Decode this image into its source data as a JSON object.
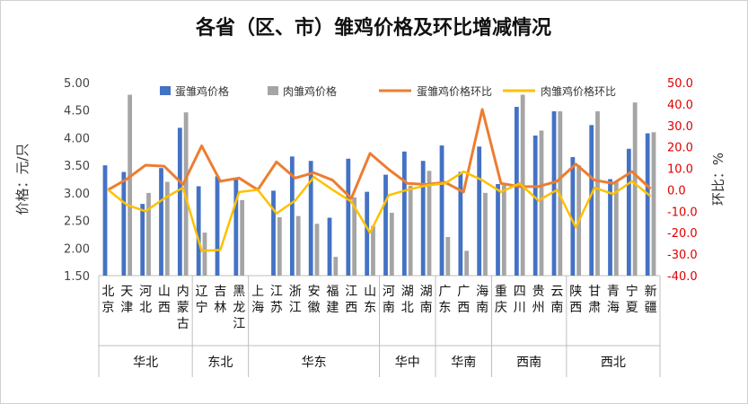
{
  "chart_data": {
    "type": "bar",
    "title": "各省（区、市）雏鸡价格及环比增减情况",
    "ylabel": "价格：元/只",
    "y2label": "环比：%",
    "ylim": [
      1.5,
      5.0
    ],
    "y_ticks": [
      "1.50",
      "2.00",
      "2.50",
      "3.00",
      "3.50",
      "4.00",
      "4.50",
      "5.00"
    ],
    "y2lim": [
      -40,
      50
    ],
    "y2_ticks": [
      "-40.0",
      "-30.0",
      "-20.0",
      "-10.0",
      "0.0",
      "10.0",
      "20.0",
      "30.0",
      "40.0",
      "50.0"
    ],
    "categories": [
      "北京",
      "天津",
      "河北",
      "山西",
      "内蒙古",
      "辽宁",
      "吉林",
      "黑龙江",
      "上海",
      "江苏",
      "浙江",
      "安徽",
      "福建",
      "江西",
      "山东",
      "河南",
      "湖北",
      "湖南",
      "广东",
      "广西",
      "海南",
      "重庆",
      "四川",
      "贵州",
      "云南",
      "陕西",
      "甘肃",
      "青海",
      "宁夏",
      "新疆"
    ],
    "regions": [
      {
        "name": "华北",
        "count": 5
      },
      {
        "name": "东北",
        "count": 3
      },
      {
        "name": "华东",
        "count": 7
      },
      {
        "name": "华中",
        "count": 3
      },
      {
        "name": "华南",
        "count": 3
      },
      {
        "name": "西南",
        "count": 4
      },
      {
        "name": "西北",
        "count": 5
      }
    ],
    "series": [
      {
        "name": "蛋雏鸡价格",
        "kind": "bar",
        "axis": "left",
        "color": "#4472C4",
        "values": [
          3.5,
          3.38,
          2.8,
          3.45,
          4.18,
          3.12,
          3.3,
          3.25,
          null,
          3.04,
          3.66,
          3.58,
          2.55,
          3.62,
          3.02,
          3.33,
          3.75,
          3.58,
          3.86,
          3.38,
          3.84,
          3.16,
          4.56,
          4.04,
          4.48,
          3.65,
          4.23,
          3.25,
          3.8,
          4.08
        ]
      },
      {
        "name": "肉雏鸡价格",
        "kind": "bar",
        "axis": "left",
        "color": "#A5A5A5",
        "values": [
          null,
          4.78,
          3.0,
          3.2,
          4.46,
          2.28,
          null,
          2.87,
          null,
          2.56,
          2.58,
          2.44,
          1.84,
          2.92,
          2.4,
          2.64,
          3.13,
          3.4,
          2.2,
          1.95,
          3.0,
          3.14,
          4.78,
          4.13,
          4.48,
          3.5,
          4.48,
          3.2,
          4.64,
          4.1
        ]
      },
      {
        "name": "蛋雏鸡价格环比",
        "kind": "line",
        "axis": "right",
        "color": "#ED7D31",
        "values": [
          0.0,
          5.0,
          11.5,
          11.0,
          2.5,
          20.5,
          4.0,
          5.5,
          0.0,
          13.0,
          5.5,
          8.0,
          4.5,
          -4.0,
          17.0,
          9.5,
          3.0,
          2.5,
          3.5,
          -1.0,
          37.5,
          3.0,
          1.5,
          1.5,
          4.0,
          12.0,
          4.5,
          3.0,
          8.5,
          0.5
        ]
      },
      {
        "name": "肉雏鸡价格环比",
        "kind": "line",
        "axis": "right",
        "color": "#FFC000",
        "values": [
          0.0,
          -7.0,
          -10.0,
          -4.0,
          1.0,
          -28.5,
          -28.0,
          -1.0,
          0.0,
          -11.0,
          -5.0,
          6.0,
          0.0,
          -5.5,
          -20.0,
          -2.5,
          0.0,
          2.0,
          3.0,
          8.5,
          4.5,
          -1.0,
          3.0,
          -5.0,
          0.0,
          -17.5,
          1.0,
          -2.0,
          4.0,
          -3.0
        ]
      }
    ],
    "legend": "top"
  }
}
